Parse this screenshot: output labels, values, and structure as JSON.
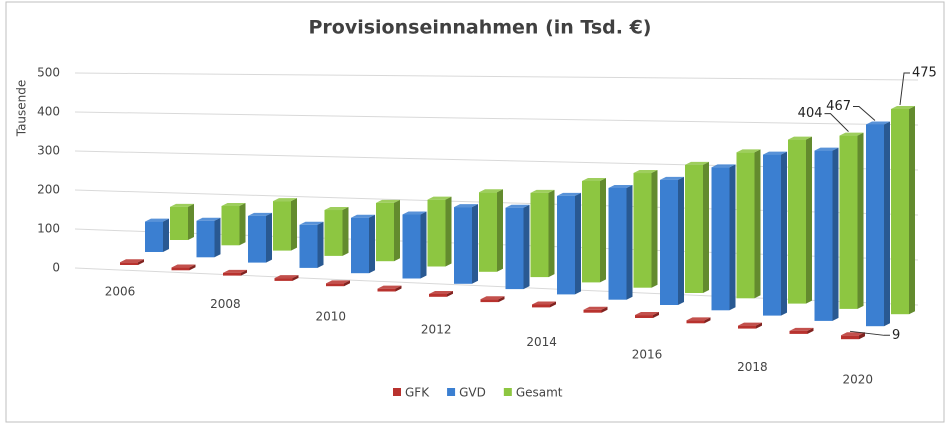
{
  "chart_data": {
    "type": "bar3d",
    "title": "Provisionseinnahmen (in Tsd. €)",
    "y_label": "Tausende",
    "categories": [
      "2006",
      null,
      "2008",
      null,
      "2010",
      null,
      "2012",
      null,
      "2014",
      null,
      "2016",
      null,
      "2018",
      null,
      "2020"
    ],
    "series": [
      {
        "name": "GFK",
        "color": "#b8322e",
        "values": [
          7,
          7,
          7,
          7,
          7,
          7,
          7,
          7,
          7,
          7,
          7,
          7,
          7,
          7,
          9
        ]
      },
      {
        "name": "GVD",
        "color": "#3b7fd1",
        "values": [
          78,
          93,
          118,
          108,
          138,
          158,
          188,
          198,
          238,
          268,
          298,
          338,
          378,
          397,
          467
        ]
      },
      {
        "name": "Gesamt",
        "color": "#8dc641",
        "values": [
          85,
          100,
          125,
          115,
          145,
          165,
          195,
          205,
          245,
          275,
          305,
          345,
          385,
          404,
          475
        ]
      }
    ],
    "ylim": [
      0,
      500
    ],
    "yticks": [
      0,
      100,
      200,
      300,
      400,
      500
    ],
    "grid": true
  }
}
